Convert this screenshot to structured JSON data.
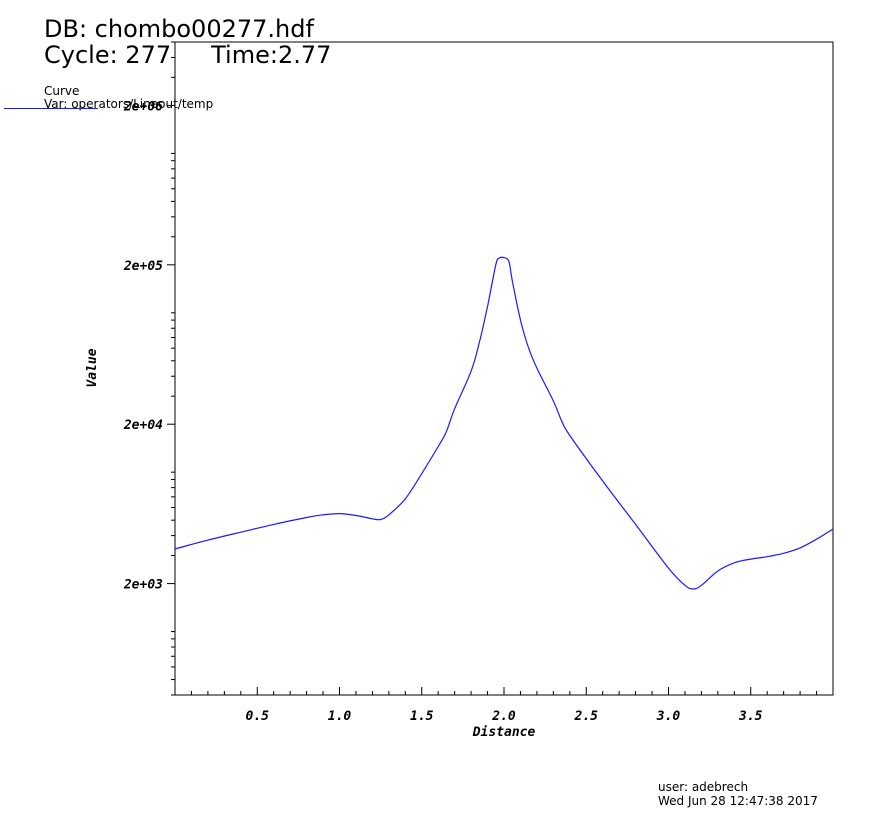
{
  "header": {
    "db": "DB: chombo00277.hdf",
    "cycle": "Cycle: 277",
    "time": "Time:2.77"
  },
  "legend": {
    "title": "Curve",
    "var": "Var: operators/Lineout/temp",
    "color": "#1a1aff"
  },
  "footer": {
    "user": "user: adebrech",
    "date": "Wed Jun 28 12:47:38 2017"
  },
  "chart_data": {
    "type": "line",
    "xlabel": "Distance",
    "ylabel": "Value",
    "xlim": [
      0,
      4.0
    ],
    "ylim": [
      400,
      5000000
    ],
    "yscale": "log",
    "grid": false,
    "x_ticks": [
      {
        "value": 0.5,
        "label": "0.5"
      },
      {
        "value": 1.0,
        "label": "1.0"
      },
      {
        "value": 1.5,
        "label": "1.5"
      },
      {
        "value": 2.0,
        "label": "2.0"
      },
      {
        "value": 2.5,
        "label": "2.5"
      },
      {
        "value": 3.0,
        "label": "3.0"
      },
      {
        "value": 3.5,
        "label": "3.5"
      }
    ],
    "y_ticks": [
      {
        "value": 2000,
        "label": "2e+03"
      },
      {
        "value": 20000,
        "label": "2e+04"
      },
      {
        "value": 200000,
        "label": "2e+05"
      },
      {
        "value": 2000000,
        "label": "2e+06"
      }
    ],
    "series": [
      {
        "color": "#1a1aff",
        "x": [
          0.0,
          0.2,
          0.4,
          0.6,
          0.8,
          0.9,
          1.0,
          1.1,
          1.2,
          1.25,
          1.3,
          1.4,
          1.5,
          1.6,
          1.65,
          1.7,
          1.8,
          1.85,
          1.9,
          1.95,
          1.97,
          2.0,
          2.03,
          2.05,
          2.1,
          2.15,
          2.2,
          2.3,
          2.35,
          2.4,
          2.6,
          2.8,
          3.0,
          3.1,
          3.15,
          3.2,
          3.3,
          3.4,
          3.5,
          3.6,
          3.7,
          3.8,
          3.9,
          4.0
        ],
        "y": [
          3300,
          3750,
          4200,
          4700,
          5200,
          5400,
          5500,
          5350,
          5100,
          5050,
          5400,
          6800,
          9800,
          14500,
          18000,
          25000,
          43000,
          65000,
          110000,
          200000,
          220000,
          222000,
          210000,
          160000,
          90000,
          60000,
          45000,
          28000,
          21000,
          17000,
          8800,
          4700,
          2500,
          1950,
          1850,
          1950,
          2400,
          2700,
          2850,
          2950,
          3100,
          3350,
          3800,
          4400
        ]
      }
    ]
  }
}
